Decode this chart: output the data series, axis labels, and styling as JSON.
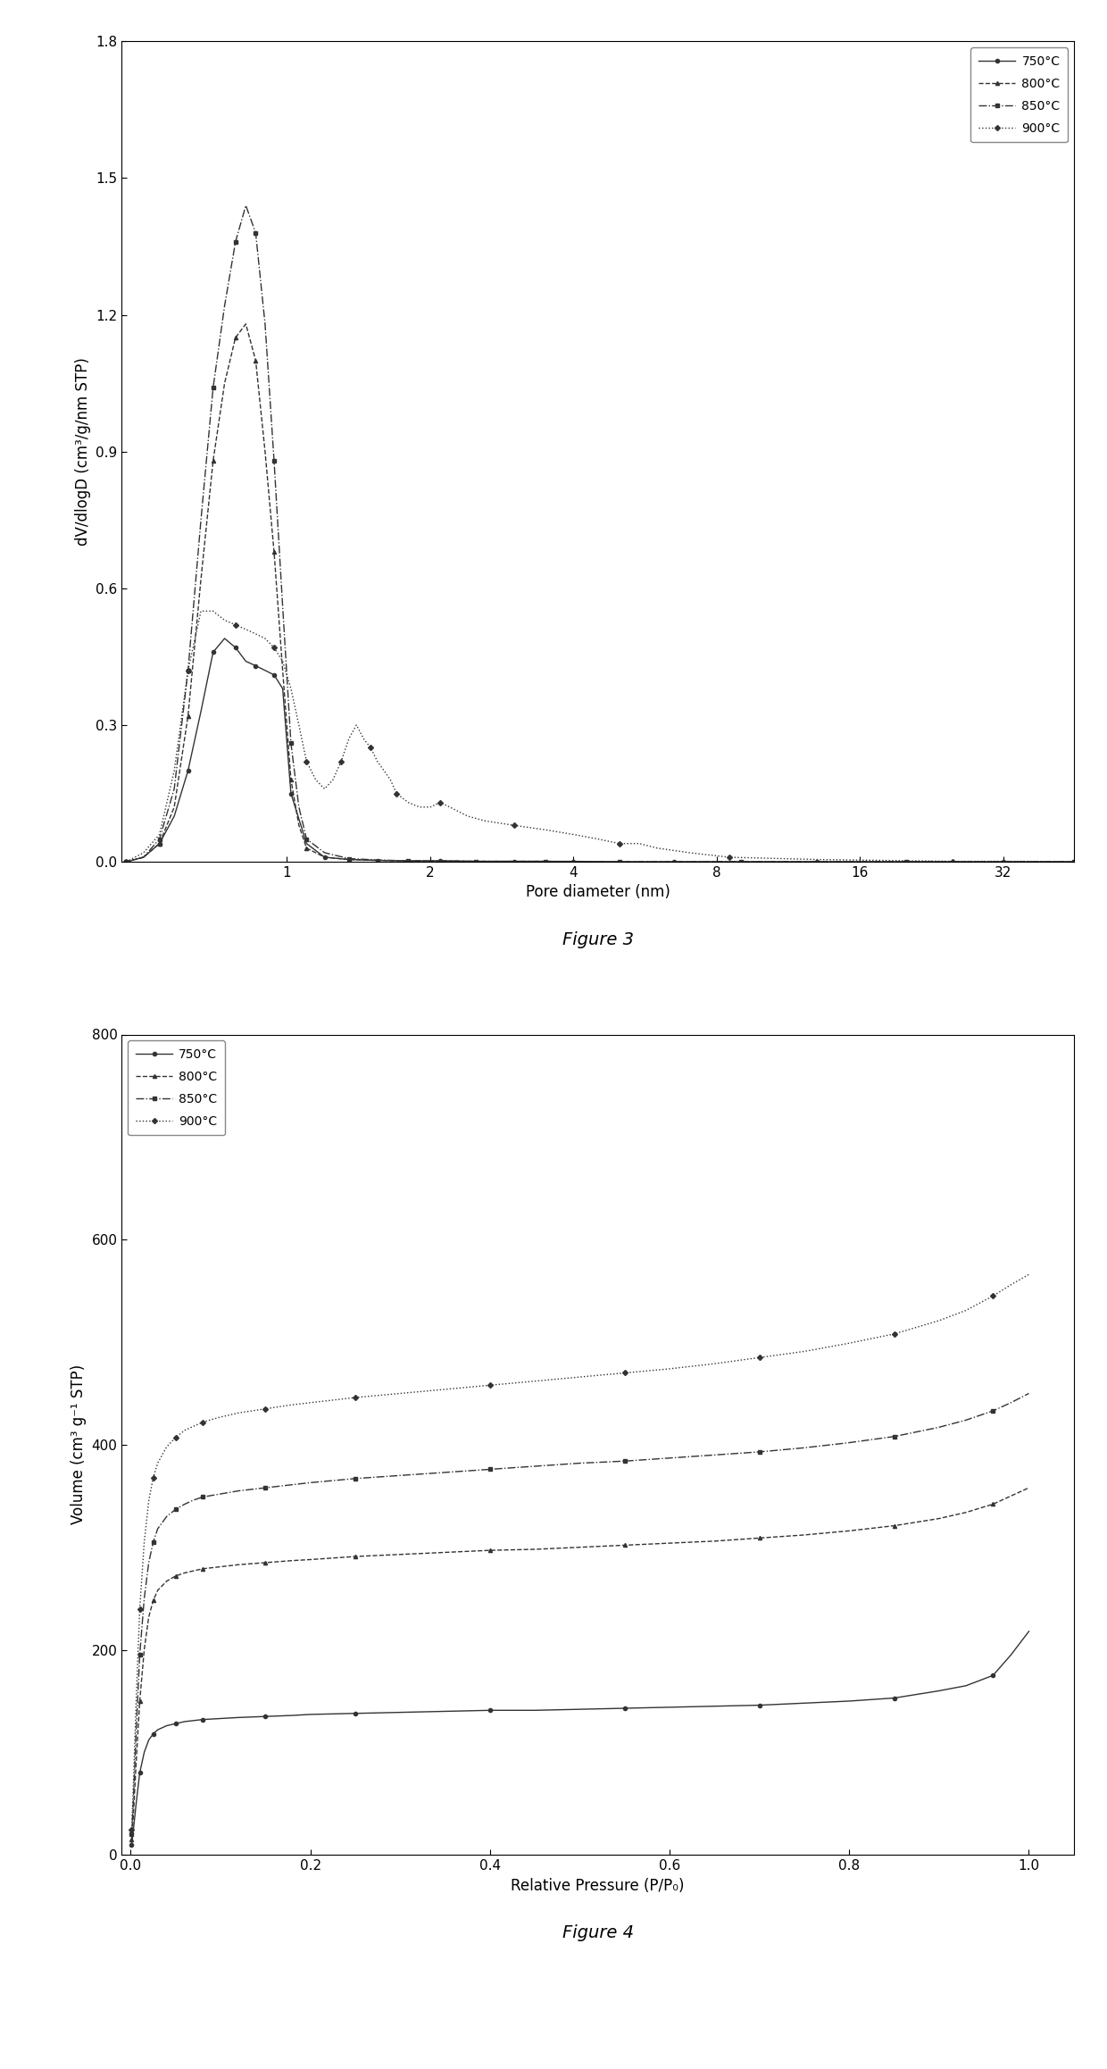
{
  "fig3": {
    "xlabel": "Pore diameter (nm)",
    "ylabel": "dV/dlogD (cm³/g/nm STP)",
    "xlim_log": [
      0.45,
      45
    ],
    "ylim": [
      0.0,
      1.8
    ],
    "yticks": [
      0.0,
      0.3,
      0.6,
      0.9,
      1.2,
      1.5,
      1.8
    ],
    "xtick_positions": [
      1.0,
      2.0,
      4.0,
      8.0,
      16.0,
      32.0
    ],
    "xtick_labels": [
      "1",
      "2",
      "4",
      "8",
      "16",
      "32"
    ],
    "series": [
      {
        "label": "750°C",
        "marker": "o",
        "linestyle": "-",
        "x": [
          0.46,
          0.5,
          0.54,
          0.58,
          0.62,
          0.66,
          0.7,
          0.74,
          0.78,
          0.82,
          0.86,
          0.9,
          0.94,
          0.98,
          1.02,
          1.1,
          1.2,
          1.35,
          1.55,
          1.8,
          2.1,
          2.5,
          3.0,
          3.5,
          4.0,
          5.0,
          6.5,
          9.0,
          13.0,
          20.0,
          32.0,
          45.0
        ],
        "y": [
          0.0,
          0.01,
          0.04,
          0.1,
          0.2,
          0.33,
          0.46,
          0.49,
          0.47,
          0.44,
          0.43,
          0.42,
          0.41,
          0.38,
          0.15,
          0.04,
          0.01,
          0.005,
          0.003,
          0.002,
          0.002,
          0.001,
          0.001,
          0.001,
          0.001,
          0.0,
          0.0,
          0.0,
          0.0,
          0.0,
          0.0,
          0.0
        ]
      },
      {
        "label": "800°C",
        "marker": "^",
        "linestyle": "--",
        "x": [
          0.46,
          0.5,
          0.54,
          0.58,
          0.62,
          0.66,
          0.7,
          0.74,
          0.78,
          0.82,
          0.86,
          0.9,
          0.94,
          0.98,
          1.02,
          1.06,
          1.1,
          1.2,
          1.35,
          1.55,
          1.8,
          2.1,
          2.5,
          3.0,
          3.5,
          4.0,
          5.0,
          6.5,
          9.0,
          13.0,
          20.0,
          32.0,
          45.0
        ],
        "y": [
          0.0,
          0.01,
          0.04,
          0.12,
          0.32,
          0.62,
          0.88,
          1.05,
          1.15,
          1.18,
          1.1,
          0.9,
          0.68,
          0.42,
          0.18,
          0.08,
          0.03,
          0.01,
          0.005,
          0.003,
          0.002,
          0.002,
          0.001,
          0.001,
          0.001,
          0.0,
          0.0,
          0.0,
          0.0,
          0.0,
          0.0,
          0.0,
          0.0
        ]
      },
      {
        "label": "850°C",
        "marker": "s",
        "linestyle": "-.",
        "x": [
          0.46,
          0.5,
          0.54,
          0.58,
          0.62,
          0.66,
          0.7,
          0.74,
          0.78,
          0.82,
          0.86,
          0.9,
          0.94,
          0.98,
          1.02,
          1.06,
          1.1,
          1.2,
          1.35,
          1.55,
          1.8,
          2.1,
          2.5,
          3.0,
          3.5,
          4.0,
          5.0,
          6.5,
          9.0,
          13.0,
          20.0,
          32.0,
          45.0
        ],
        "y": [
          0.0,
          0.01,
          0.05,
          0.16,
          0.42,
          0.75,
          1.04,
          1.22,
          1.36,
          1.44,
          1.38,
          1.18,
          0.88,
          0.56,
          0.26,
          0.12,
          0.05,
          0.02,
          0.007,
          0.004,
          0.002,
          0.002,
          0.001,
          0.001,
          0.001,
          0.0,
          0.0,
          0.0,
          0.0,
          0.0,
          0.0,
          0.0,
          0.0
        ]
      },
      {
        "label": "900°C",
        "marker": "D",
        "linestyle": ":",
        "x": [
          0.46,
          0.5,
          0.54,
          0.58,
          0.62,
          0.66,
          0.7,
          0.74,
          0.78,
          0.82,
          0.86,
          0.9,
          0.94,
          0.98,
          1.02,
          1.06,
          1.1,
          1.15,
          1.2,
          1.25,
          1.3,
          1.35,
          1.4,
          1.45,
          1.5,
          1.55,
          1.6,
          1.65,
          1.7,
          1.8,
          1.9,
          2.0,
          2.1,
          2.2,
          2.4,
          2.6,
          3.0,
          3.5,
          4.0,
          4.5,
          5.0,
          5.5,
          6.0,
          7.0,
          8.5,
          10.0,
          13.0,
          18.0,
          25.0,
          35.0,
          45.0
        ],
        "y": [
          0.0,
          0.02,
          0.06,
          0.2,
          0.42,
          0.55,
          0.55,
          0.53,
          0.52,
          0.51,
          0.5,
          0.49,
          0.47,
          0.44,
          0.38,
          0.3,
          0.22,
          0.18,
          0.16,
          0.18,
          0.22,
          0.27,
          0.3,
          0.27,
          0.25,
          0.22,
          0.2,
          0.18,
          0.15,
          0.13,
          0.12,
          0.12,
          0.13,
          0.12,
          0.1,
          0.09,
          0.08,
          0.07,
          0.06,
          0.05,
          0.04,
          0.04,
          0.03,
          0.02,
          0.01,
          0.008,
          0.005,
          0.003,
          0.001,
          0.001,
          0.0
        ]
      }
    ]
  },
  "fig4": {
    "xlabel": "Relative Pressure (P/P₀)",
    "ylabel": "Volume (cm³ g⁻¹ STP)",
    "xlim": [
      -0.01,
      1.05
    ],
    "ylim": [
      0,
      800
    ],
    "yticks": [
      0,
      200,
      400,
      600,
      800
    ],
    "xticks": [
      0.0,
      0.2,
      0.4,
      0.6,
      0.8,
      1.0
    ],
    "series": [
      {
        "label": "750°C",
        "marker": "o",
        "linestyle": "-",
        "x": [
          0.001,
          0.003,
          0.006,
          0.01,
          0.015,
          0.02,
          0.025,
          0.03,
          0.04,
          0.05,
          0.06,
          0.07,
          0.08,
          0.1,
          0.12,
          0.15,
          0.18,
          0.2,
          0.25,
          0.3,
          0.35,
          0.4,
          0.45,
          0.5,
          0.55,
          0.6,
          0.65,
          0.7,
          0.75,
          0.8,
          0.85,
          0.9,
          0.93,
          0.96,
          0.98,
          1.0
        ],
        "y": [
          10,
          25,
          50,
          80,
          100,
          112,
          118,
          122,
          126,
          128,
          130,
          131,
          132,
          133,
          134,
          135,
          136,
          137,
          138,
          139,
          140,
          141,
          141,
          142,
          143,
          144,
          145,
          146,
          148,
          150,
          153,
          160,
          165,
          175,
          195,
          218
        ]
      },
      {
        "label": "800°C",
        "marker": "^",
        "linestyle": "--",
        "x": [
          0.001,
          0.003,
          0.006,
          0.01,
          0.015,
          0.02,
          0.025,
          0.03,
          0.04,
          0.05,
          0.06,
          0.07,
          0.08,
          0.1,
          0.12,
          0.15,
          0.18,
          0.2,
          0.25,
          0.3,
          0.35,
          0.4,
          0.45,
          0.5,
          0.55,
          0.6,
          0.65,
          0.7,
          0.75,
          0.8,
          0.85,
          0.9,
          0.93,
          0.96,
          0.98,
          1.0
        ],
        "y": [
          15,
          40,
          90,
          150,
          200,
          232,
          248,
          258,
          267,
          272,
          275,
          277,
          279,
          281,
          283,
          285,
          287,
          288,
          291,
          293,
          295,
          297,
          298,
          300,
          302,
          304,
          306,
          309,
          312,
          316,
          321,
          328,
          334,
          342,
          350,
          358
        ]
      },
      {
        "label": "850°C",
        "marker": "s",
        "linestyle": "-.",
        "x": [
          0.001,
          0.003,
          0.006,
          0.01,
          0.015,
          0.02,
          0.025,
          0.03,
          0.04,
          0.05,
          0.06,
          0.07,
          0.08,
          0.1,
          0.12,
          0.15,
          0.18,
          0.2,
          0.25,
          0.3,
          0.35,
          0.4,
          0.45,
          0.5,
          0.55,
          0.6,
          0.65,
          0.7,
          0.75,
          0.8,
          0.85,
          0.9,
          0.93,
          0.96,
          0.98,
          1.0
        ],
        "y": [
          20,
          55,
          120,
          195,
          250,
          285,
          305,
          318,
          330,
          337,
          342,
          346,
          349,
          352,
          355,
          358,
          361,
          363,
          367,
          370,
          373,
          376,
          379,
          382,
          384,
          387,
          390,
          393,
          397,
          402,
          408,
          417,
          424,
          433,
          441,
          450
        ]
      },
      {
        "label": "900°C",
        "marker": "D",
        "linestyle": ":",
        "x": [
          0.001,
          0.003,
          0.006,
          0.01,
          0.015,
          0.02,
          0.025,
          0.03,
          0.04,
          0.05,
          0.06,
          0.07,
          0.08,
          0.1,
          0.12,
          0.15,
          0.18,
          0.2,
          0.25,
          0.3,
          0.35,
          0.4,
          0.45,
          0.5,
          0.55,
          0.6,
          0.65,
          0.7,
          0.75,
          0.8,
          0.85,
          0.9,
          0.93,
          0.96,
          0.98,
          1.0
        ],
        "y": [
          25,
          70,
          150,
          240,
          305,
          345,
          368,
          382,
          398,
          407,
          414,
          418,
          422,
          427,
          431,
          435,
          439,
          441,
          446,
          450,
          454,
          458,
          462,
          466,
          470,
          474,
          479,
          485,
          491,
          499,
          508,
          521,
          531,
          545,
          556,
          566
        ]
      }
    ]
  },
  "caption3": "Figure 3",
  "caption4": "Figure 4",
  "background_color": "#ffffff",
  "fontsize_axis_label": 12,
  "fontsize_tick": 11,
  "fontsize_legend": 10,
  "fontsize_caption": 14,
  "marker_size": 3,
  "linewidth": 1.0
}
